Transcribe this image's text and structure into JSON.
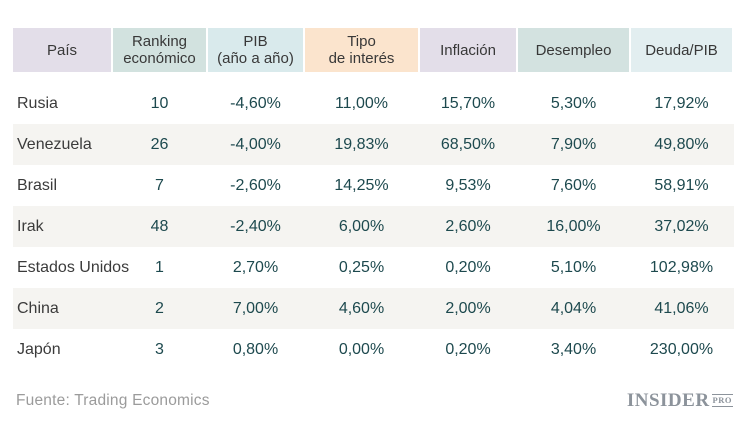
{
  "colors": {
    "header_text": "#383838",
    "country_text": "#3b3b3b",
    "value_text": "#1d494e",
    "stripe": "#f5f4f1",
    "source_text": "#9b9b9b",
    "logo": "#8c939b"
  },
  "chart_data": {
    "type": "table",
    "columns": [
      {
        "id": "pais",
        "label": "País",
        "bg": "#e3dee9"
      },
      {
        "id": "ranking",
        "label": "Ranking\neconómico",
        "bg": "#d2e2df"
      },
      {
        "id": "pib",
        "label": "PIB\n(año a año)",
        "bg": "#d9eaec"
      },
      {
        "id": "tipo",
        "label": "Tipo\nde interés",
        "bg": "#fbe4cd"
      },
      {
        "id": "inflacion",
        "label": "Inflación",
        "bg": "#e3dee9"
      },
      {
        "id": "desempleo",
        "label": "Desempleo",
        "bg": "#d3e2e0"
      },
      {
        "id": "deuda",
        "label": "Deuda/PIB",
        "bg": "#e2eef0"
      }
    ],
    "rows": [
      {
        "pais": "Rusia",
        "ranking": "10",
        "pib": "-4,60%",
        "tipo": "11,00%",
        "inflacion": "15,70%",
        "desempleo": "5,30%",
        "deuda": "17,92%"
      },
      {
        "pais": "Venezuela",
        "ranking": "26",
        "pib": "-4,00%",
        "tipo": "19,83%",
        "inflacion": "68,50%",
        "desempleo": "7,90%",
        "deuda": "49,80%"
      },
      {
        "pais": "Brasil",
        "ranking": "7",
        "pib": "-2,60%",
        "tipo": "14,25%",
        "inflacion": "9,53%",
        "desempleo": "7,60%",
        "deuda": "58,91%"
      },
      {
        "pais": "Irak",
        "ranking": "48",
        "pib": "-2,40%",
        "tipo": "6,00%",
        "inflacion": "2,60%",
        "desempleo": "16,00%",
        "deuda": "37,02%"
      },
      {
        "pais": "Estados Unidos",
        "ranking": "1",
        "pib": "2,70%",
        "tipo": "0,25%",
        "inflacion": "0,20%",
        "desempleo": "5,10%",
        "deuda": "102,98%"
      },
      {
        "pais": "China",
        "ranking": "2",
        "pib": "7,00%",
        "tipo": "4,60%",
        "inflacion": "2,00%",
        "desempleo": "4,04%",
        "deuda": "41,06%"
      },
      {
        "pais": "Japón",
        "ranking": "3",
        "pib": "0,80%",
        "tipo": "0,00%",
        "inflacion": "0,20%",
        "desempleo": "3,40%",
        "deuda": "230,00%"
      }
    ]
  },
  "footer": {
    "source": "Fuente: Trading Economics",
    "logo_main": "INSIDER",
    "logo_suffix": "PRO"
  }
}
